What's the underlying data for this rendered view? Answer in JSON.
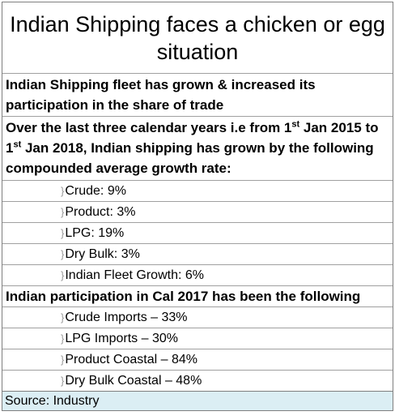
{
  "title": "Indian Shipping faces a chicken or egg situation",
  "fleet_heading": "Indian Shipping fleet has grown & increased its participation in the share of trade",
  "growth_heading": {
    "part1": "Over the last three calendar years i.e from 1",
    "sup1": "st",
    "part2": " Jan 2015 to 1",
    "sup2": "st",
    "part3": " Jan 2018, Indian shipping has grown by the following compounded average growth rate:"
  },
  "growth_rates": [
    "Crude: 9%",
    "Product: 3%",
    "LPG: 19%",
    "Dry Bulk: 3%",
    "Indian Fleet Growth: 6%"
  ],
  "participation_heading": "Indian participation in Cal 2017 has been the following",
  "participation": [
    "Crude Imports – 33%",
    "LPG Imports – 30%",
    "Product Coastal – 84%",
    "Dry Bulk Coastal – 48%"
  ],
  "source": "Source: Industry",
  "brace_glyph": "}",
  "colors": {
    "source_bg": "#dbeef4",
    "border": "#7f7f7f"
  }
}
